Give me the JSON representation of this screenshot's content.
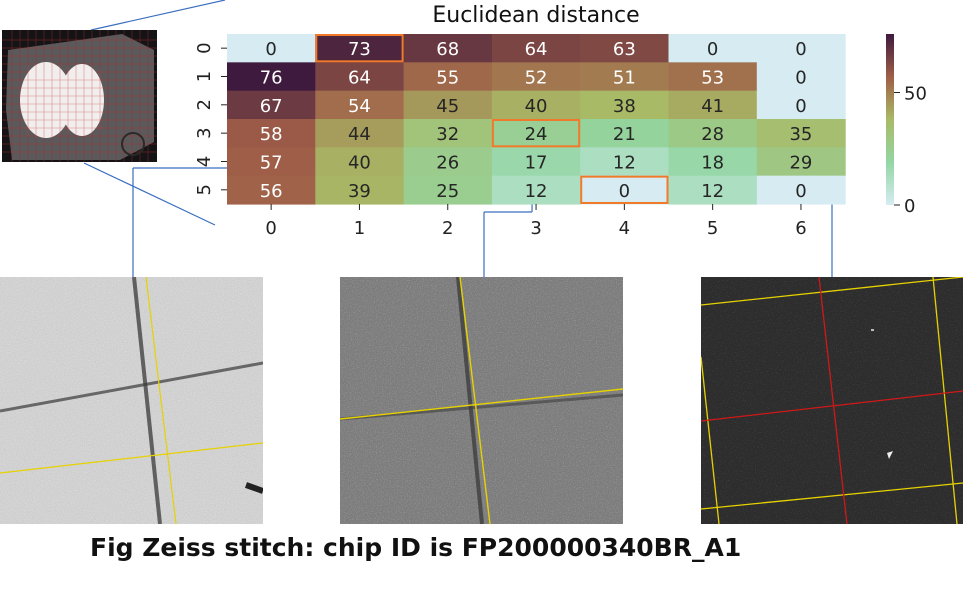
{
  "chart_data": {
    "type": "heatmap",
    "title": "Euclidean distance",
    "x_ticks": [
      "0",
      "1",
      "2",
      "3",
      "4",
      "5",
      "6"
    ],
    "y_ticks": [
      "0",
      "1",
      "2",
      "3",
      "4",
      "5"
    ],
    "values": [
      [
        0,
        73,
        68,
        64,
        63,
        0,
        0
      ],
      [
        76,
        64,
        55,
        52,
        51,
        53,
        0
      ],
      [
        67,
        54,
        45,
        40,
        38,
        41,
        0
      ],
      [
        58,
        44,
        32,
        24,
        21,
        28,
        35
      ],
      [
        57,
        40,
        26,
        17,
        12,
        18,
        29
      ],
      [
        56,
        39,
        25,
        12,
        0,
        12,
        0
      ]
    ],
    "highlighted_cells": [
      [
        0,
        1
      ],
      [
        3,
        3
      ],
      [
        5,
        4
      ]
    ],
    "colorbar_ticks": [
      "0",
      "50"
    ],
    "vmin": 0,
    "vmax": 76,
    "colormap": [
      "#d6ecf2",
      "#93d6a4",
      "#a9ba66",
      "#9f5e47",
      "#3e1a3e"
    ],
    "highlight_color": "#f07a2a",
    "grid": false
  },
  "caption": "Fig Zeiss stitch: chip ID is FP200000340BR_A1",
  "connector_color": "#3b6fbf",
  "micrograph_grid_colors": {
    "yellow": "#e6d200",
    "red": "#d01818"
  }
}
